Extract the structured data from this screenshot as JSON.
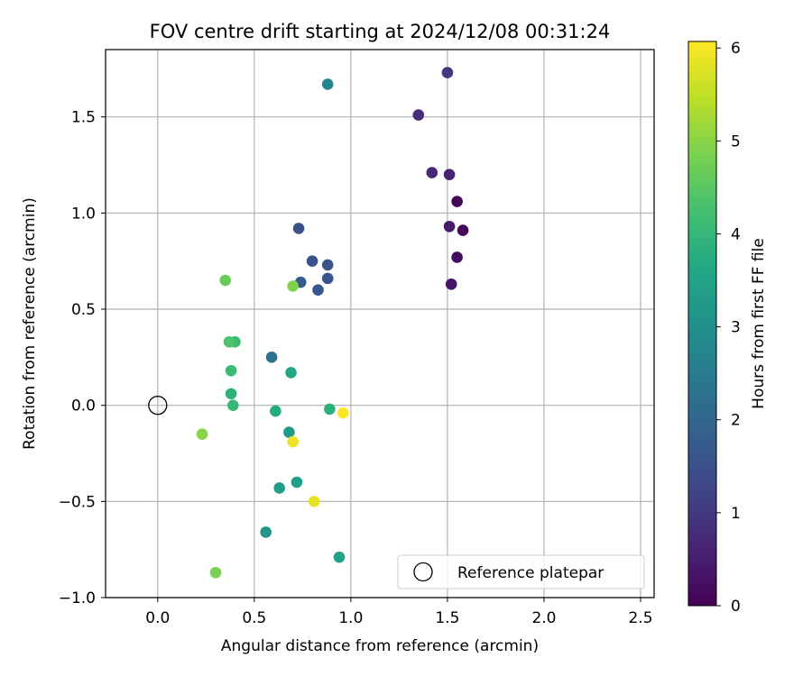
{
  "chart_data": {
    "type": "scatter",
    "title": "FOV centre drift starting at 2024/12/08 00:31:24",
    "xlabel": "Angular distance from reference (arcmin)",
    "ylabel": "Rotation from reference (arcmin)",
    "xlim": [
      -0.27,
      2.57
    ],
    "ylim": [
      -1.0,
      1.85
    ],
    "xticks": [
      "0.0",
      "0.5",
      "1.0",
      "1.5",
      "2.0",
      "2.5"
    ],
    "xtick_values": [
      0.0,
      0.5,
      1.0,
      1.5,
      2.0,
      2.5
    ],
    "yticks": [
      "−1.0",
      "−0.5",
      "0.0",
      "0.5",
      "1.0",
      "1.5"
    ],
    "ytick_values": [
      -1.0,
      -0.5,
      0.0,
      0.5,
      1.0,
      1.5
    ],
    "grid": true,
    "colormap": "viridis",
    "colorbar": {
      "label": "Hours from first FF file",
      "range": [
        0,
        6.07
      ],
      "ticks": [
        "0",
        "1",
        "2",
        "3",
        "4",
        "5",
        "6"
      ],
      "tick_values": [
        0,
        1,
        2,
        3,
        4,
        5,
        6
      ]
    },
    "reference": {
      "name": "Reference platepar",
      "x": 0.0,
      "y": 0.0
    },
    "legend": {
      "position": "lower-right",
      "entries": [
        "Reference platepar"
      ]
    },
    "points": [
      {
        "x": 1.55,
        "y": 1.06,
        "hours": 0.05
      },
      {
        "x": 1.58,
        "y": 0.91,
        "hours": 0.1
      },
      {
        "x": 1.55,
        "y": 0.77,
        "hours": 0.2
      },
      {
        "x": 1.52,
        "y": 0.63,
        "hours": 0.35
      },
      {
        "x": 1.51,
        "y": 0.93,
        "hours": 0.45
      },
      {
        "x": 1.51,
        "y": 1.2,
        "hours": 0.6
      },
      {
        "x": 1.42,
        "y": 1.21,
        "hours": 0.7
      },
      {
        "x": 1.35,
        "y": 1.51,
        "hours": 0.8
      },
      {
        "x": 1.5,
        "y": 1.73,
        "hours": 0.95
      },
      {
        "x": 0.73,
        "y": 0.92,
        "hours": 1.5
      },
      {
        "x": 0.8,
        "y": 0.75,
        "hours": 1.5
      },
      {
        "x": 0.88,
        "y": 0.73,
        "hours": 1.55
      },
      {
        "x": 0.88,
        "y": 0.66,
        "hours": 1.6
      },
      {
        "x": 0.83,
        "y": 0.6,
        "hours": 1.65
      },
      {
        "x": 0.74,
        "y": 0.64,
        "hours": 1.7
      },
      {
        "x": 0.59,
        "y": 0.25,
        "hours": 2.3
      },
      {
        "x": 0.88,
        "y": 1.67,
        "hours": 2.75
      },
      {
        "x": 0.56,
        "y": -0.66,
        "hours": 3.15
      },
      {
        "x": 0.68,
        "y": -0.14,
        "hours": 3.3
      },
      {
        "x": 0.63,
        "y": -0.43,
        "hours": 3.35
      },
      {
        "x": 0.72,
        "y": -0.4,
        "hours": 3.4
      },
      {
        "x": 0.94,
        "y": -0.79,
        "hours": 3.45
      },
      {
        "x": 0.69,
        "y": 0.17,
        "hours": 3.6
      },
      {
        "x": 0.61,
        "y": -0.03,
        "hours": 3.7
      },
      {
        "x": 0.89,
        "y": -0.02,
        "hours": 3.85
      },
      {
        "x": 0.38,
        "y": 0.06,
        "hours": 3.9
      },
      {
        "x": 0.39,
        "y": 0.0,
        "hours": 4.05
      },
      {
        "x": 0.38,
        "y": 0.18,
        "hours": 4.1
      },
      {
        "x": 0.4,
        "y": 0.33,
        "hours": 4.15
      },
      {
        "x": 0.37,
        "y": 0.33,
        "hours": 4.35
      },
      {
        "x": 0.35,
        "y": 0.65,
        "hours": 4.65
      },
      {
        "x": 0.3,
        "y": -0.87,
        "hours": 4.85
      },
      {
        "x": 0.7,
        "y": 0.62,
        "hours": 4.9
      },
      {
        "x": 0.23,
        "y": -0.15,
        "hours": 5.0
      },
      {
        "x": 0.81,
        "y": -0.5,
        "hours": 5.85
      },
      {
        "x": 0.7,
        "y": -0.19,
        "hours": 5.95
      },
      {
        "x": 0.96,
        "y": -0.04,
        "hours": 6.05
      }
    ]
  }
}
